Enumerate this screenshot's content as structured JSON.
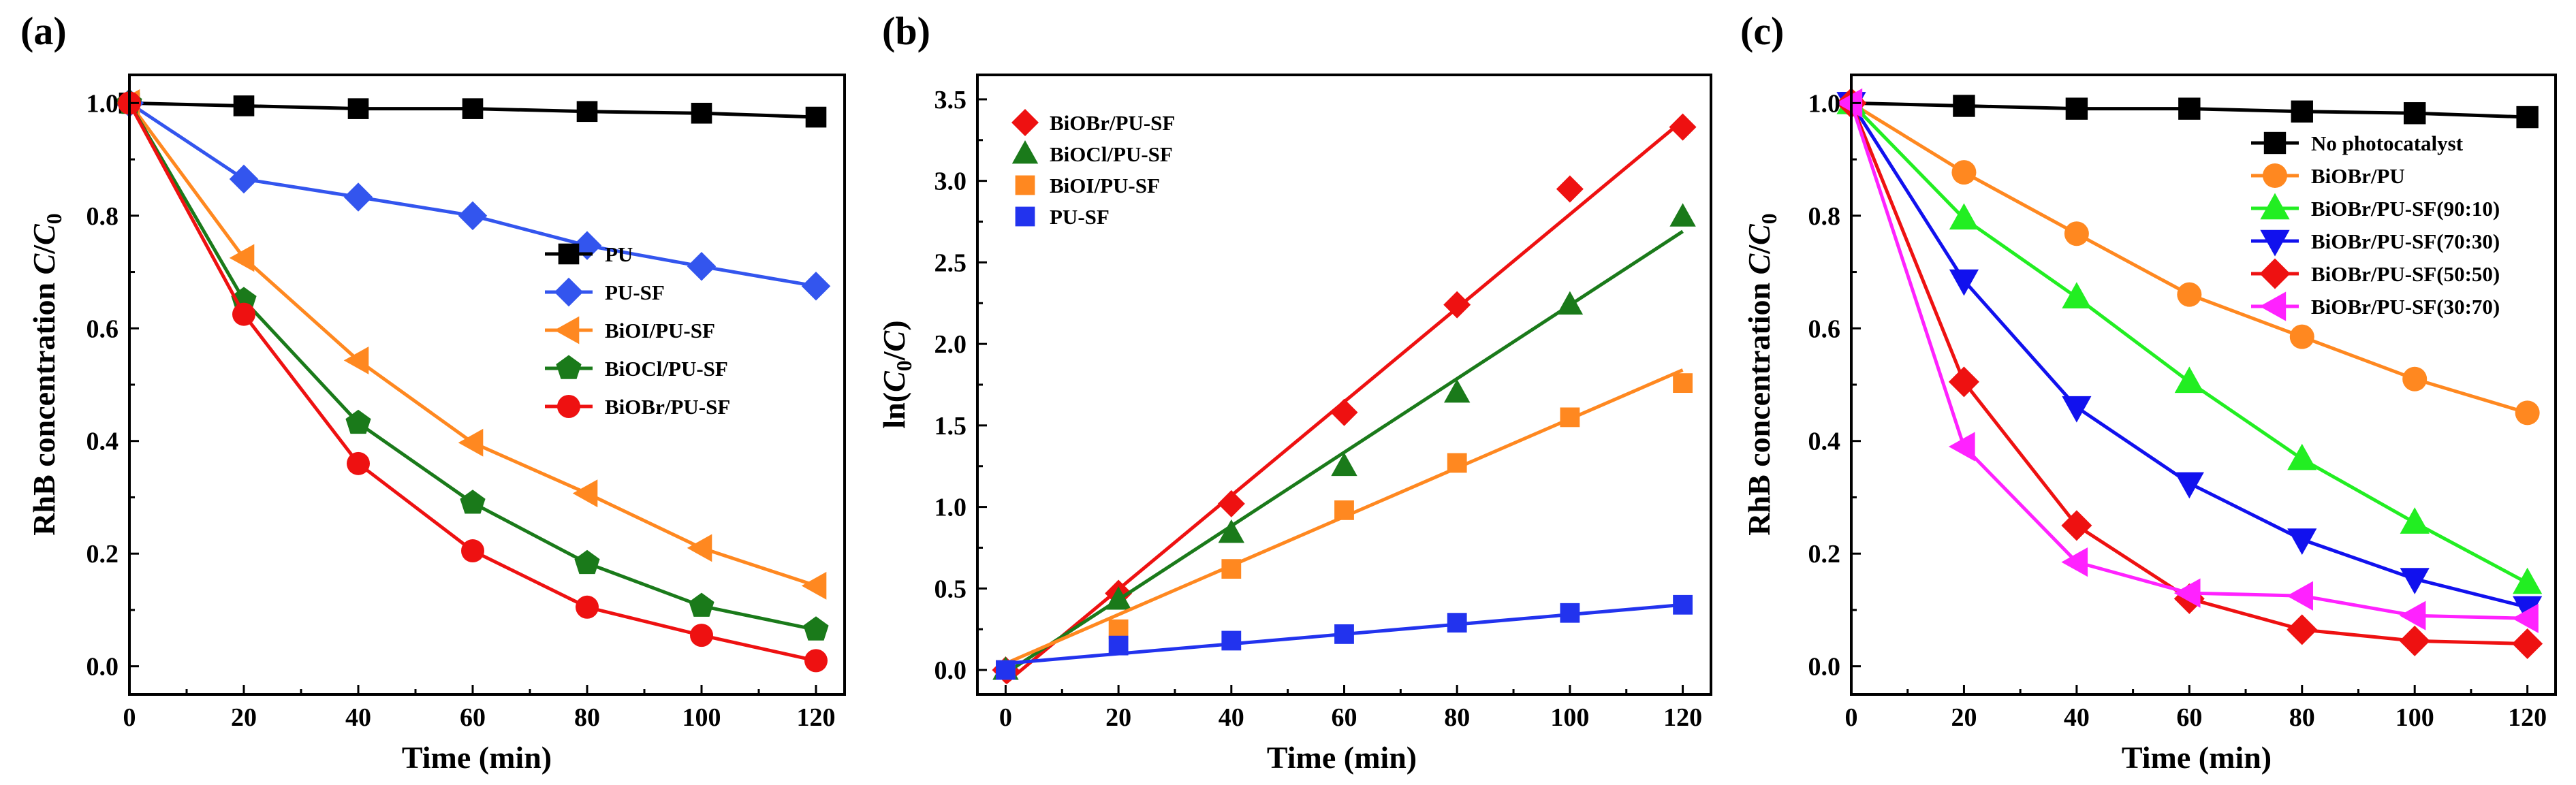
{
  "chart_data": [
    {
      "panel_label": "(a)",
      "type": "line",
      "xlabel": "Time (min)",
      "ylabel_main": "RhB concentration ",
      "ylabel_C": "C",
      "ylabel_slash": "/",
      "ylabel_C0": "C",
      "ylabel_sub": "0",
      "xlim": [
        0,
        125
      ],
      "ylim": [
        -0.05,
        1.05
      ],
      "xticks": [
        0,
        20,
        40,
        60,
        80,
        100,
        120
      ],
      "xtick_labels": [
        "0",
        "20",
        "40",
        "60",
        "80",
        "100",
        "120"
      ],
      "yticks": [
        0,
        0.2,
        0.4,
        0.6,
        0.8,
        1.0
      ],
      "ytick_labels": [
        "0.0",
        "0.2",
        "0.4",
        "0.6",
        "0.8",
        "1.0"
      ],
      "legend_position": "middle-right",
      "x": [
        0,
        20,
        40,
        60,
        80,
        100,
        120
      ],
      "series": [
        {
          "name": "PU",
          "color": "#000000",
          "marker": "square",
          "values": [
            1.0,
            0.995,
            0.99,
            0.99,
            0.985,
            0.982,
            0.975
          ]
        },
        {
          "name": "PU-SF",
          "color": "#3355ee",
          "marker": "diamond",
          "values": [
            1.0,
            0.865,
            0.833,
            0.8,
            0.747,
            0.71,
            0.675
          ]
        },
        {
          "name": "BiOI/PU-SF",
          "color": "#ff8820",
          "marker": "triangle-left",
          "values": [
            1.0,
            0.725,
            0.543,
            0.397,
            0.307,
            0.21,
            0.143
          ]
        },
        {
          "name": "BiOCl/PU-SF",
          "color": "#1a7a1a",
          "marker": "pentagon",
          "values": [
            1.0,
            0.65,
            0.432,
            0.29,
            0.183,
            0.107,
            0.065
          ]
        },
        {
          "name": "BiOBr/PU-SF",
          "color": "#ee1111",
          "marker": "circle",
          "values": [
            1.0,
            0.625,
            0.36,
            0.205,
            0.105,
            0.055,
            0.01
          ]
        }
      ]
    },
    {
      "panel_label": "(b)",
      "type": "scatter",
      "xlabel": "Time (min)",
      "ylabel_main": "ln(",
      "ylabel_C": "C",
      "ylabel_sub": "0",
      "ylabel_slash": "/",
      "ylabel_C2": "C",
      "ylabel_close": ")",
      "xlim": [
        -5,
        125
      ],
      "ylim": [
        -0.15,
        3.65
      ],
      "xticks": [
        0,
        20,
        40,
        60,
        80,
        100,
        120
      ],
      "xtick_labels": [
        "0",
        "20",
        "40",
        "60",
        "80",
        "100",
        "120"
      ],
      "yticks": [
        0,
        0.5,
        1.0,
        1.5,
        2.0,
        2.5,
        3.0,
        3.5
      ],
      "ytick_labels": [
        "0.0",
        "0.5",
        "1.0",
        "1.5",
        "2.0",
        "2.5",
        "3.0",
        "3.5"
      ],
      "legend_position": "top-left",
      "x": [
        0,
        20,
        40,
        60,
        80,
        100,
        120
      ],
      "series": [
        {
          "name": "BiOBr/PU-SF",
          "color": "#ee1111",
          "marker": "diamond",
          "values": [
            0,
            0.47,
            1.02,
            1.58,
            2.24,
            2.95,
            3.33
          ],
          "fit": [
            -0.08,
            3.37
          ]
        },
        {
          "name": "BiOCl/PU-SF",
          "color": "#1a7a1a",
          "marker": "triangle-up",
          "values": [
            0,
            0.43,
            0.84,
            1.25,
            1.7,
            2.24,
            2.78
          ],
          "fit": [
            -0.02,
            2.69
          ]
        },
        {
          "name": "BiOI/PU-SF",
          "color": "#ff8820",
          "marker": "square",
          "values": [
            0,
            0.25,
            0.62,
            0.98,
            1.27,
            1.55,
            1.76
          ],
          "fit": [
            0.04,
            1.84
          ]
        },
        {
          "name": "PU-SF",
          "color": "#2233ee",
          "marker": "square",
          "values": [
            0,
            0.15,
            0.18,
            0.22,
            0.29,
            0.35,
            0.4
          ],
          "fit": [
            0.04,
            0.4
          ]
        }
      ]
    },
    {
      "panel_label": "(c)",
      "type": "line",
      "xlabel": "Time (min)",
      "ylabel_main": "RhB concentration ",
      "ylabel_C": "C",
      "ylabel_slash": "/",
      "ylabel_C0": "C",
      "ylabel_sub": "0",
      "xlim": [
        0,
        125
      ],
      "ylim": [
        -0.05,
        1.05
      ],
      "xticks": [
        0,
        20,
        40,
        60,
        80,
        100,
        120
      ],
      "xtick_labels": [
        "0",
        "20",
        "40",
        "60",
        "80",
        "100",
        "120"
      ],
      "yticks": [
        0,
        0.2,
        0.4,
        0.6,
        0.8,
        1.0
      ],
      "ytick_labels": [
        "0.0",
        "0.2",
        "0.4",
        "0.6",
        "0.8",
        "1.0"
      ],
      "legend_position": "top-right",
      "x": [
        0,
        20,
        40,
        60,
        80,
        100,
        120
      ],
      "series": [
        {
          "name": "No photocatalyst",
          "color": "#000000",
          "marker": "square",
          "values": [
            1.0,
            0.995,
            0.99,
            0.99,
            0.985,
            0.982,
            0.975
          ]
        },
        {
          "name": "BiOBr/PU",
          "color": "#ff8820",
          "marker": "circle",
          "values": [
            1.0,
            0.877,
            0.768,
            0.66,
            0.585,
            0.51,
            0.45
          ]
        },
        {
          "name": "BiOBr/PU-SF(90:10)",
          "color": "#22ee22",
          "marker": "triangle-up",
          "values": [
            1.0,
            0.795,
            0.655,
            0.505,
            0.368,
            0.255,
            0.148
          ]
        },
        {
          "name": "BiOBr/PU-SF(70:30)",
          "color": "#1111ee",
          "marker": "triangle-down",
          "values": [
            1.0,
            0.685,
            0.46,
            0.325,
            0.225,
            0.155,
            0.105
          ]
        },
        {
          "name": "BiOBr/PU-SF(50:50)",
          "color": "#ee1111",
          "marker": "diamond",
          "values": [
            1.0,
            0.505,
            0.25,
            0.12,
            0.065,
            0.045,
            0.04
          ]
        },
        {
          "name": "BiOBr/PU-SF(30:70)",
          "color": "#ff22ff",
          "marker": "triangle-left",
          "values": [
            1.0,
            0.39,
            0.185,
            0.13,
            0.125,
            0.09,
            0.085
          ]
        }
      ]
    }
  ]
}
